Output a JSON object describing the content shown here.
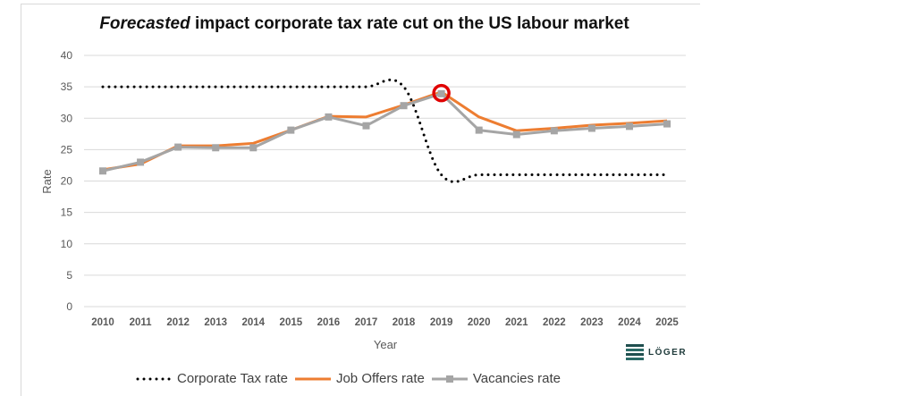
{
  "chart_data": {
    "type": "line",
    "title_italic": "Forecasted",
    "title_rest": " impact corporate tax rate cut on the US labour market",
    "xlabel": "Year",
    "ylabel": "Rate",
    "ylim": [
      0,
      40
    ],
    "yticks": [
      0,
      5,
      10,
      15,
      20,
      25,
      30,
      35,
      40
    ],
    "grid": true,
    "legend_position": "bottom",
    "categories": [
      "2010",
      "2011",
      "2012",
      "2013",
      "2014",
      "2015",
      "2016",
      "2017",
      "2018",
      "2019",
      "2020",
      "2021",
      "2022",
      "2023",
      "2024",
      "2025"
    ],
    "series": [
      {
        "name": "Corporate Tax rate",
        "style": "dotted",
        "smooth": true,
        "color": "#000000",
        "values": [
          35,
          35,
          35,
          35,
          35,
          35,
          35,
          35,
          35,
          21,
          21,
          21,
          21,
          21,
          21,
          21
        ]
      },
      {
        "name": "Job Offers rate",
        "style": "solid",
        "color": "#ed7d31",
        "values": [
          21.8,
          22.7,
          25.6,
          25.6,
          26.0,
          28.1,
          30.3,
          30.2,
          32.1,
          34.2,
          30.2,
          28.0,
          28.4,
          28.9,
          29.2,
          29.6
        ]
      },
      {
        "name": "Vacancies rate",
        "style": "solid-markers",
        "color": "#a5a5a5",
        "values": [
          21.6,
          23.0,
          25.4,
          25.3,
          25.3,
          28.1,
          30.2,
          28.8,
          32.0,
          33.9,
          28.1,
          27.4,
          28.0,
          28.4,
          28.7,
          29.1
        ]
      }
    ],
    "annotations": [
      {
        "type": "circle-highlight",
        "category": "2019",
        "value": 34,
        "color": "#e00000"
      }
    ]
  },
  "legend": [
    {
      "label": "Corporate Tax rate"
    },
    {
      "label": "Job Offers rate"
    },
    {
      "label": "Vacancies rate"
    }
  ],
  "logo": {
    "text": "LÖGER"
  }
}
